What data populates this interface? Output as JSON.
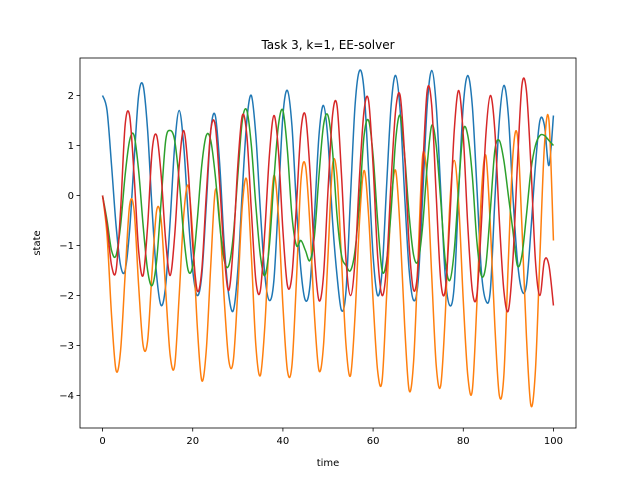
{
  "chart_data": {
    "type": "line",
    "title": "Task 3, k=1, EE-solver",
    "xlabel": "time",
    "ylabel": "state",
    "xlim": [
      -5,
      105
    ],
    "ylim": [
      -4.65,
      2.75
    ],
    "xticks": [
      0,
      20,
      40,
      60,
      80,
      100
    ],
    "yticks": [
      -4,
      -3,
      -2,
      -1,
      0,
      1,
      2
    ],
    "grid": false,
    "legend": "none",
    "series": [
      {
        "color": "#1f77b4",
        "x": [
          0,
          1,
          2,
          3,
          4,
          5,
          6,
          7,
          8,
          9,
          10,
          11,
          12,
          13,
          14,
          15,
          16,
          17,
          18,
          19,
          20,
          21,
          22,
          23,
          24,
          25,
          26,
          27,
          28,
          29,
          30,
          31,
          32,
          33,
          34,
          35,
          36,
          37,
          38,
          39,
          40,
          41,
          42,
          43,
          44,
          45,
          46,
          47,
          48,
          49,
          50,
          51,
          52,
          53,
          54,
          55,
          56,
          57,
          58,
          59,
          60,
          61,
          62,
          63,
          64,
          65,
          66,
          67,
          68,
          69,
          70,
          71,
          72,
          73,
          74,
          75,
          76,
          77,
          78,
          79,
          80,
          81,
          82,
          83,
          84,
          85,
          86,
          87,
          88,
          89,
          90,
          91,
          92,
          93,
          94,
          95,
          96,
          97,
          98,
          99,
          100
        ],
        "values": [
          2.0,
          1.7,
          0.6,
          -0.6,
          -1.4,
          -1.5,
          -0.7,
          0.7,
          2.0,
          2.2,
          1.3,
          -0.3,
          -1.6,
          -2.2,
          -1.8,
          -0.5,
          1.0,
          1.7,
          1.0,
          -0.4,
          -1.5,
          -2.0,
          -1.6,
          -0.2,
          1.3,
          1.6,
          0.6,
          -1.0,
          -2.0,
          -2.3,
          -1.5,
          0.1,
          1.5,
          2.0,
          1.2,
          -0.3,
          -1.6,
          -2.1,
          -1.7,
          -0.1,
          1.6,
          2.1,
          1.4,
          -0.2,
          -1.5,
          -2.1,
          -1.8,
          -0.4,
          1.2,
          1.8,
          1.1,
          -0.5,
          -1.6,
          -2.3,
          -1.9,
          0.0,
          1.8,
          2.5,
          2.1,
          0.5,
          -1.2,
          -2.0,
          -1.5,
          0.2,
          1.8,
          2.4,
          1.7,
          0.0,
          -1.5,
          -2.1,
          -1.7,
          0.0,
          1.8,
          2.5,
          1.8,
          0.1,
          -1.6,
          -2.2,
          -1.8,
          0.1,
          1.8,
          2.4,
          1.8,
          0.2,
          -1.5,
          -2.1,
          -1.9,
          -0.1,
          1.5,
          2.2,
          1.6,
          0.0,
          -1.3,
          -1.9,
          -1.8,
          -0.7,
          0.6,
          1.5,
          1.4,
          0.6,
          1.6
        ]
      },
      {
        "color": "#ff7f0e",
        "x": [
          0,
          1,
          2,
          3,
          4,
          5,
          6,
          7,
          8,
          9,
          10,
          11,
          12,
          13,
          14,
          15,
          16,
          17,
          18,
          19,
          20,
          21,
          22,
          23,
          24,
          25,
          26,
          27,
          28,
          29,
          30,
          31,
          32,
          33,
          34,
          35,
          36,
          37,
          38,
          39,
          40,
          41,
          42,
          43,
          44,
          45,
          46,
          47,
          48,
          49,
          50,
          51,
          52,
          53,
          54,
          55,
          56,
          57,
          58,
          59,
          60,
          61,
          62,
          63,
          64,
          65,
          66,
          67,
          68,
          69,
          70,
          71,
          72,
          73,
          74,
          75,
          76,
          77,
          78,
          79,
          80,
          81,
          82,
          83,
          84,
          85,
          86,
          87,
          88,
          89,
          90,
          91,
          92,
          93,
          94,
          95,
          96,
          97,
          98,
          99,
          100
        ],
        "values": [
          0.0,
          -0.8,
          -2.4,
          -3.5,
          -3.1,
          -1.6,
          -0.2,
          -0.3,
          -1.8,
          -3.0,
          -2.9,
          -1.5,
          -0.3,
          -0.5,
          -1.9,
          -3.2,
          -3.4,
          -2.0,
          -0.4,
          0.2,
          -0.8,
          -2.6,
          -3.7,
          -3.1,
          -1.4,
          0.1,
          -0.5,
          -2.1,
          -3.3,
          -3.3,
          -1.9,
          -0.2,
          0.3,
          -1.2,
          -3.0,
          -3.6,
          -2.6,
          -0.8,
          0.4,
          -0.4,
          -2.2,
          -3.5,
          -3.4,
          -1.7,
          0.3,
          0.6,
          -0.6,
          -2.4,
          -3.5,
          -3.0,
          -1.2,
          0.6,
          0.4,
          -1.3,
          -3.0,
          -3.6,
          -2.4,
          -0.5,
          0.5,
          -0.4,
          -2.1,
          -3.5,
          -3.7,
          -2.0,
          -0.2,
          0.5,
          -0.7,
          -2.6,
          -3.9,
          -3.3,
          -1.2,
          0.8,
          0.3,
          -1.6,
          -3.4,
          -3.8,
          -2.4,
          -0.2,
          0.7,
          -0.2,
          -2.1,
          -3.6,
          -3.9,
          -2.2,
          0.0,
          0.8,
          -0.6,
          -2.6,
          -4.0,
          -3.6,
          -1.3,
          0.8,
          1.2,
          -0.6,
          -2.8,
          -4.2,
          -3.5,
          -1.2,
          1.0,
          1.5,
          -0.9
        ]
      },
      {
        "color": "#2ca02c",
        "x": [
          0,
          1,
          2,
          3,
          4,
          5,
          6,
          7,
          8,
          9,
          10,
          11,
          12,
          13,
          14,
          15,
          16,
          17,
          18,
          19,
          20,
          21,
          22,
          23,
          24,
          25,
          26,
          27,
          28,
          29,
          30,
          31,
          32,
          33,
          34,
          35,
          36,
          37,
          38,
          39,
          40,
          41,
          42,
          43,
          44,
          45,
          46,
          47,
          48,
          49,
          50,
          51,
          52,
          53,
          54,
          55,
          56,
          57,
          58,
          59,
          60,
          61,
          62,
          63,
          64,
          65,
          66,
          67,
          68,
          69,
          70,
          71,
          72,
          73,
          74,
          75,
          76,
          77,
          78,
          79,
          80,
          81,
          82,
          83,
          84,
          85,
          86,
          87,
          88,
          89,
          90,
          91,
          92,
          93,
          94,
          95,
          96,
          97,
          98,
          99,
          100
        ],
        "values": [
          0.0,
          -0.5,
          -1.1,
          -1.2,
          -0.6,
          0.4,
          1.1,
          1.2,
          0.5,
          -0.6,
          -1.5,
          -1.8,
          -1.3,
          -0.1,
          1.1,
          1.3,
          1.1,
          0.3,
          -0.8,
          -1.5,
          -1.4,
          -0.5,
          0.6,
          1.2,
          1.1,
          0.4,
          -0.6,
          -1.3,
          -1.4,
          -0.8,
          0.4,
          1.5,
          1.7,
          1.0,
          -0.2,
          -1.2,
          -1.6,
          -1.0,
          0.3,
          1.4,
          1.7,
          0.9,
          -0.4,
          -1.0,
          -0.9,
          -1.1,
          -1.3,
          -0.8,
          0.4,
          1.4,
          1.6,
          0.9,
          -0.4,
          -1.2,
          -1.4,
          -1.5,
          -1.1,
          -0.1,
          1.2,
          1.5,
          0.8,
          -0.5,
          -1.5,
          -1.3,
          -0.3,
          1.1,
          1.6,
          0.8,
          -0.4,
          -1.2,
          -1.3,
          -0.6,
          0.6,
          1.4,
          1.0,
          -0.1,
          -1.3,
          -1.7,
          -1.1,
          0.2,
          1.3,
          1.2,
          0.4,
          -0.9,
          -1.6,
          -1.4,
          -0.3,
          0.9,
          1.1,
          0.7,
          0.0,
          -0.7,
          -1.4,
          -1.2,
          -0.4,
          0.5,
          1.0,
          1.2,
          1.2,
          1.1,
          1.0
        ]
      },
      {
        "color": "#d62728",
        "x": [
          0,
          1,
          2,
          3,
          4,
          5,
          6,
          7,
          8,
          9,
          10,
          11,
          12,
          13,
          14,
          15,
          16,
          17,
          18,
          19,
          20,
          21,
          22,
          23,
          24,
          25,
          26,
          27,
          28,
          29,
          30,
          31,
          32,
          33,
          34,
          35,
          36,
          37,
          38,
          39,
          40,
          41,
          42,
          43,
          44,
          45,
          46,
          47,
          48,
          49,
          50,
          51,
          52,
          53,
          54,
          55,
          56,
          57,
          58,
          59,
          60,
          61,
          62,
          63,
          64,
          65,
          66,
          67,
          68,
          69,
          70,
          71,
          72,
          73,
          74,
          75,
          76,
          77,
          78,
          79,
          80,
          81,
          82,
          83,
          84,
          85,
          86,
          87,
          88,
          89,
          90,
          91,
          92,
          93,
          94,
          95,
          96,
          97,
          98,
          99,
          100
        ],
        "values": [
          0.0,
          -0.6,
          -1.4,
          -1.5,
          -0.3,
          1.4,
          1.6,
          0.4,
          -1.1,
          -1.6,
          -0.6,
          0.9,
          1.2,
          0.4,
          -0.9,
          -1.6,
          -0.8,
          0.6,
          1.3,
          0.5,
          -1.0,
          -1.9,
          -1.5,
          0.0,
          1.3,
          1.4,
          0.2,
          -1.2,
          -1.9,
          -1.0,
          0.6,
          1.6,
          1.2,
          -0.3,
          -1.7,
          -1.9,
          -0.7,
          0.8,
          1.6,
          0.9,
          -0.7,
          -1.8,
          -1.6,
          -0.2,
          1.3,
          1.6,
          0.5,
          -1.2,
          -2.1,
          -1.6,
          0.1,
          1.6,
          1.8,
          0.4,
          -1.3,
          -2.0,
          -1.3,
          0.4,
          1.7,
          1.9,
          0.6,
          -1.2,
          -2.0,
          -1.4,
          0.3,
          1.7,
          2.0,
          0.8,
          -1.0,
          -1.9,
          -1.4,
          0.5,
          2.1,
          1.8,
          0.0,
          -1.7,
          -1.9,
          -0.5,
          1.3,
          2.1,
          1.2,
          -0.6,
          -1.9,
          -2.0,
          -0.6,
          1.2,
          2.0,
          1.3,
          -0.5,
          -1.9,
          -2.3,
          -1.3,
          0.6,
          2.2,
          2.1,
          0.6,
          -1.3,
          -2.0,
          -1.3,
          -1.4,
          -2.2
        ]
      }
    ]
  }
}
